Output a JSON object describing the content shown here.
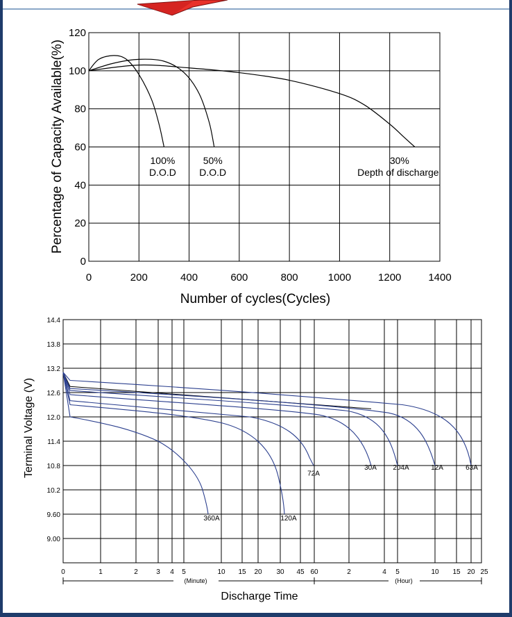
{
  "colors": {
    "frame": "#1f3c6b",
    "accent": "#e8312a",
    "series_blue": "#2b3f8e",
    "series_black": "#000000"
  },
  "chart_data": [
    {
      "type": "line",
      "xlabel": "Number of cycles(Cycles)",
      "ylabel": "Percentage of Capacity Available(%)",
      "xlim": [
        0,
        1400
      ],
      "ylim": [
        0,
        120
      ],
      "xticks": [
        "0",
        "200",
        "400",
        "600",
        "800",
        "1000",
        "1200",
        "1400"
      ],
      "yticks": [
        "0",
        "20",
        "40",
        "60",
        "80",
        "100",
        "120"
      ],
      "grid": true,
      "series": [
        {
          "name": "100% D.O.D",
          "x": [
            0,
            40,
            100,
            150,
            200,
            250,
            280,
            300
          ],
          "y": [
            100,
            106,
            108,
            106,
            98,
            85,
            72,
            60
          ]
        },
        {
          "name": "50% D.O.D",
          "x": [
            0,
            100,
            200,
            300,
            380,
            440,
            480,
            500
          ],
          "y": [
            100,
            104,
            106,
            105,
            99,
            88,
            73,
            60
          ]
        },
        {
          "name": "30% Depth of discharge",
          "x": [
            0,
            200,
            400,
            600,
            800,
            1000,
            1100,
            1200,
            1250,
            1300
          ],
          "y": [
            100,
            103,
            101.5,
            99,
            95,
            88,
            82,
            72,
            66,
            60
          ]
        }
      ],
      "annotations": [
        {
          "text": "100%",
          "line2": "D.O.D",
          "x": 300,
          "y": 58
        },
        {
          "text": "50%",
          "line2": "D.O.D",
          "x": 500,
          "y": 58
        },
        {
          "text": "30%",
          "line2": "Depth of discharge",
          "x": 1300,
          "y": 58
        }
      ]
    },
    {
      "type": "line",
      "xlabel": "Discharge Time",
      "ylabel": "Terminal Voltage (V)",
      "ylim": [
        8.4,
        14.4
      ],
      "yticks": [
        "14.4",
        "13.8",
        "13.2",
        "12.6",
        "12.0",
        "11.4",
        "10.8",
        "10.2",
        "9.60",
        "9.00"
      ],
      "xticks": [
        "0",
        "1",
        "2",
        "3",
        "4",
        "5",
        "10",
        "15",
        "20",
        "30",
        "45",
        "60",
        "2",
        "4",
        "5",
        "10",
        "15",
        "20",
        "25"
      ],
      "x_units": [
        "(Minute)",
        "(Hour)"
      ],
      "grid": true,
      "series": [
        {
          "name": "360A",
          "end_label": "360A"
        },
        {
          "name": "120A",
          "end_label": "120A"
        },
        {
          "name": "72A",
          "end_label": "72A"
        },
        {
          "name": "30A",
          "end_label": "30A"
        },
        {
          "name": "204A",
          "end_label": "204A"
        },
        {
          "name": "12A",
          "end_label": "12A"
        },
        {
          "name": "63A",
          "end_label": "63A"
        }
      ]
    }
  ]
}
